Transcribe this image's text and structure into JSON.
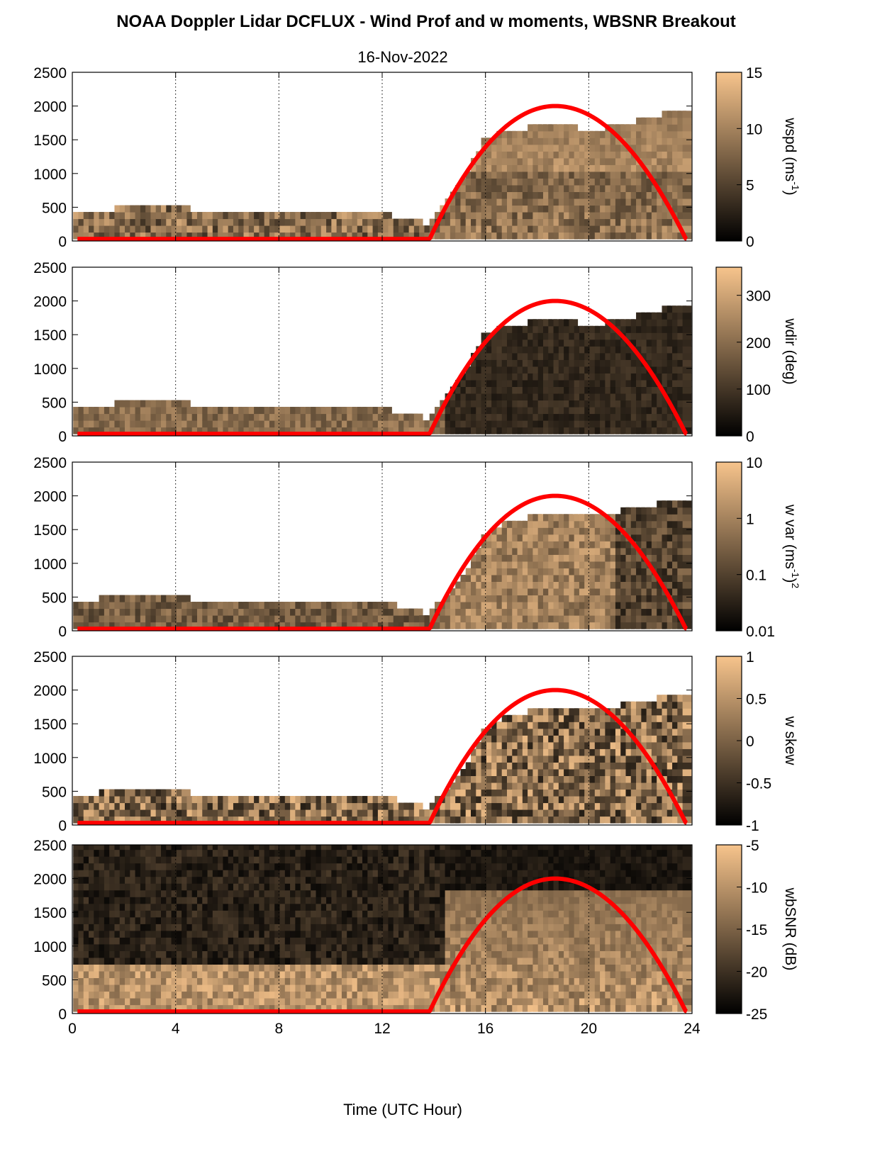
{
  "figure": {
    "title": "NOAA Doppler Lidar DCFLUX - Wind Prof and w moments, WBSNR Breakout",
    "subtitle": "16-Nov-2022",
    "xlabel": "Time (UTC Hour)"
  },
  "colors": {
    "colormap_low": "#000000",
    "colormap_high": "#f7c48c",
    "sun_curve": "#ff0000"
  },
  "chart_data": [
    {
      "type": "heatmap",
      "panel": "wspd",
      "xlim": [
        0,
        24
      ],
      "ylim": [
        0,
        2500
      ],
      "xticks": [
        "0",
        "4",
        "8",
        "12",
        "16",
        "20",
        "24"
      ],
      "yticks": [
        "0",
        "500",
        "1000",
        "1500",
        "2000",
        "2500"
      ],
      "vertical_gridlines_at": [
        4,
        8,
        12,
        16,
        20,
        24
      ],
      "colorbar": {
        "label": "wspd (ms-1)",
        "label_main": "wspd (ms",
        "label_sup": "-1",
        "label_end": ")",
        "scale": "linear",
        "range": [
          0,
          15
        ],
        "ticks": [
          "0",
          "5",
          "10",
          "15"
        ]
      },
      "sun_curve": {
        "x_start": 13.8,
        "x_peak": 18.7,
        "x_end": 23.8,
        "peak": 2000
      },
      "top_of_data": {
        "x": [
          0.2,
          2,
          4,
          6,
          8,
          10,
          12,
          13.8,
          15,
          16,
          17,
          18,
          19,
          20,
          21,
          22,
          23,
          23.8
        ],
        "y": [
          400,
          500,
          500,
          420,
          400,
          420,
          400,
          250,
          800,
          1500,
          1650,
          1700,
          1700,
          1650,
          1700,
          1800,
          1900,
          1950
        ]
      }
    },
    {
      "type": "heatmap",
      "panel": "wdir",
      "xlim": [
        0,
        24
      ],
      "ylim": [
        0,
        2500
      ],
      "xticks": [
        "0",
        "4",
        "8",
        "12",
        "16",
        "20",
        "24"
      ],
      "yticks": [
        "0",
        "500",
        "1000",
        "1500",
        "2000",
        "2500"
      ],
      "vertical_gridlines_at": [
        4,
        8,
        12,
        16,
        20,
        24
      ],
      "colorbar": {
        "label": "wdir (deg)",
        "label_main": "wdir (deg)",
        "scale": "linear",
        "range": [
          0,
          360
        ],
        "ticks": [
          "0",
          "100",
          "200",
          "300"
        ]
      },
      "sun_curve": {
        "x_start": 13.8,
        "x_peak": 18.7,
        "x_end": 23.8,
        "peak": 2000
      },
      "top_of_data": {
        "x": [
          0.2,
          2,
          4,
          6,
          8,
          10,
          12,
          13.8,
          15,
          16,
          17,
          18,
          19,
          20,
          21,
          22,
          23,
          23.8
        ],
        "y": [
          400,
          500,
          500,
          420,
          400,
          420,
          400,
          250,
          800,
          1500,
          1650,
          1700,
          1700,
          1650,
          1700,
          1800,
          1900,
          1950
        ]
      }
    },
    {
      "type": "heatmap",
      "panel": "w var",
      "xlim": [
        0,
        24
      ],
      "ylim": [
        0,
        2500
      ],
      "xticks": [
        "0",
        "4",
        "8",
        "12",
        "16",
        "20",
        "24"
      ],
      "yticks": [
        "0",
        "500",
        "1000",
        "1500",
        "2000",
        "2500"
      ],
      "vertical_gridlines_at": [
        4,
        8,
        12,
        16,
        20,
        24
      ],
      "colorbar": {
        "label": "w var (ms-1)2",
        "label_main": "w var (ms",
        "label_sup": "-1",
        "label_end": ")",
        "label_sup2": "2",
        "scale": "log",
        "range": [
          0.01,
          10
        ],
        "ticks": [
          "0.01",
          "0.1",
          "1",
          "10"
        ]
      },
      "sun_curve": {
        "x_start": 13.8,
        "x_peak": 18.7,
        "x_end": 23.8,
        "peak": 2000
      },
      "top_of_data": {
        "x": [
          0.2,
          2,
          4,
          6,
          8,
          10,
          12,
          13.8,
          15,
          16,
          17,
          18,
          19,
          20,
          21,
          22,
          23,
          23.8
        ],
        "y": [
          400,
          550,
          500,
          420,
          420,
          450,
          420,
          250,
          700,
          1400,
          1650,
          1700,
          1700,
          1700,
          1750,
          1850,
          1900,
          1950
        ]
      }
    },
    {
      "type": "heatmap",
      "panel": "w skew",
      "xlim": [
        0,
        24
      ],
      "ylim": [
        0,
        2500
      ],
      "xticks": [
        "0",
        "4",
        "8",
        "12",
        "16",
        "20",
        "24"
      ],
      "yticks": [
        "0",
        "500",
        "1000",
        "1500",
        "2000",
        "2500"
      ],
      "vertical_gridlines_at": [
        4,
        8,
        12,
        16,
        20,
        24
      ],
      "colorbar": {
        "label": "w skew",
        "label_main": "w skew",
        "scale": "linear",
        "range": [
          -1,
          1
        ],
        "ticks": [
          "-1",
          "-0.5",
          "0",
          "0.5",
          "1"
        ]
      },
      "sun_curve": {
        "x_start": 13.8,
        "x_peak": 18.7,
        "x_end": 23.8,
        "peak": 2000
      },
      "top_of_data": {
        "x": [
          0.2,
          2,
          4,
          6,
          8,
          10,
          12,
          13.8,
          15,
          16,
          17,
          18,
          19,
          20,
          21,
          22,
          23,
          23.8
        ],
        "y": [
          400,
          550,
          500,
          420,
          420,
          450,
          420,
          250,
          700,
          1400,
          1650,
          1700,
          1700,
          1700,
          1750,
          1850,
          1900,
          1950
        ]
      }
    },
    {
      "type": "heatmap",
      "panel": "wbSNR",
      "xlim": [
        0,
        24
      ],
      "ylim": [
        0,
        2500
      ],
      "xticks": [
        "0",
        "4",
        "8",
        "12",
        "16",
        "20",
        "24"
      ],
      "yticks": [
        "0",
        "500",
        "1000",
        "1500",
        "2000",
        "2500"
      ],
      "vertical_gridlines_at": [
        4,
        8,
        12,
        16,
        20,
        24
      ],
      "colorbar": {
        "label": "wbSNR (dB)",
        "label_main": "wbSNR (dB)",
        "scale": "linear",
        "range": [
          -25,
          -5
        ],
        "ticks": [
          "-25",
          "-20",
          "-15",
          "-10",
          "-5"
        ]
      },
      "sun_curve": {
        "x_start": 13.8,
        "x_peak": 18.7,
        "x_end": 23.8,
        "peak": 2000
      },
      "top_of_data": {
        "x": [
          0.2,
          2,
          4,
          6,
          8,
          10,
          12,
          13.8,
          15,
          16,
          17,
          18,
          19,
          20,
          21,
          22,
          23,
          23.8
        ],
        "y": [
          2500,
          2500,
          2500,
          2500,
          2500,
          2500,
          2500,
          2500,
          2500,
          2500,
          2500,
          2500,
          2500,
          2500,
          2500,
          2500,
          2500,
          2500
        ]
      }
    }
  ]
}
